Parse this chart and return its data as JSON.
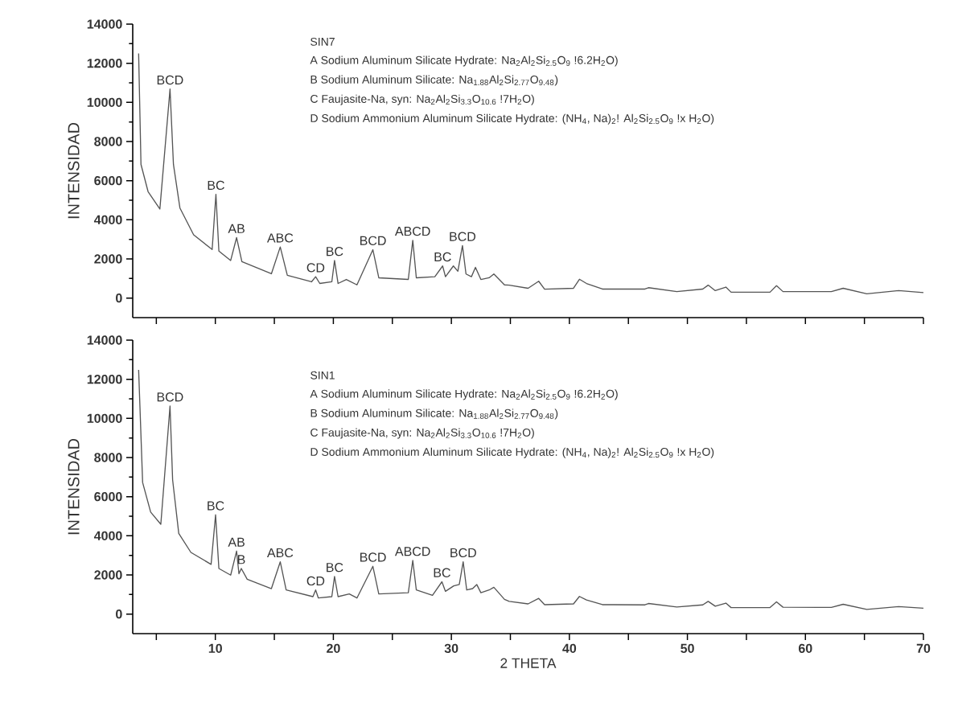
{
  "chart_data": [
    {
      "type": "line",
      "ylabel": "INTENSIDAD",
      "xlim": [
        3,
        70
      ],
      "ylim": [
        -1000,
        14000
      ],
      "xticks": [
        {
          "value": 5,
          "label": null
        },
        10,
        {
          "value": 15,
          "label": null
        },
        20,
        {
          "value": 25,
          "label": null
        },
        30,
        {
          "value": 35,
          "label": null
        },
        40,
        {
          "value": 45,
          "label": null
        },
        50,
        {
          "value": 55,
          "label": null
        },
        60,
        {
          "value": 65,
          "label": null
        },
        70
      ],
      "yticks": [
        0,
        2000,
        4000,
        6000,
        8000,
        10000,
        12000,
        14000
      ],
      "tick_labels": "y",
      "marker": "none",
      "line_style": "solid",
      "series": [
        {
          "color": "#555555",
          "x": [
            3.5,
            3.7,
            4.3,
            5.3,
            6.16,
            6.45,
            7.0,
            8.16,
            9.73,
            10.05,
            10.3,
            11.3,
            11.8,
            12.25,
            14.75,
            15.5,
            16.1,
            18.15,
            18.5,
            18.85,
            19.87,
            20.1,
            20.4,
            21.1,
            22.0,
            23.35,
            23.85,
            26.35,
            26.73,
            27.03,
            28.6,
            29.26,
            29.5,
            30.17,
            30.55,
            30.94,
            31.24,
            31.7,
            32.04,
            32.5,
            33.2,
            33.6,
            34.5,
            34.9,
            36.5,
            37.4,
            37.9,
            40.35,
            40.85,
            41.45,
            42.8,
            46.4,
            46.7,
            49.1,
            51.3,
            51.76,
            52.36,
            53.26,
            53.7,
            57.0,
            57.55,
            58.1,
            62.2,
            63.2,
            65.2,
            67.9,
            70
          ],
          "values": [
            12500,
            6830,
            5440,
            4550,
            10680,
            6830,
            4600,
            3230,
            2480,
            5300,
            2400,
            1920,
            3090,
            1860,
            1240,
            2610,
            1160,
            830,
            1090,
            745,
            830,
            1920,
            745,
            950,
            675,
            2470,
            1035,
            950,
            2950,
            1035,
            1090,
            1640,
            1090,
            1640,
            1370,
            2680,
            1230,
            1090,
            1570,
            950,
            1035,
            1230,
            675,
            660,
            500,
            860,
            455,
            500,
            960,
            745,
            460,
            460,
            530,
            330,
            460,
            660,
            380,
            560,
            300,
            300,
            630,
            330,
            330,
            500,
            215,
            380,
            280
          ]
        }
      ],
      "annotations": [
        "SIN7",
        "A Sodium Aluminum Silicate Hydrate: Na$_{2}$Al$_{2}$Si$_{2.5}$O$_{9}$ !6.2H$_{2}$O)",
        "B Sodium Aluminum Silicate: Na$_{1.88}$Al$_{2}$Si$_{2.77}$O$_{9.48}$)",
        "C Faujasite-Na, syn: Na$_{2}$Al$_{2}$Si$_{3.3}$O$_{10.6}$ !7H$_{2}$O)",
        "D Sodium Ammonium Aluminum Silicate Hydrate: (NH$_{4}$, Na)$_{2}$! Al$_{2}$Si$_{2.5}$O$_{9}$ !x H$_{2}$O)",
        {
          "text": "BCD",
          "x": 6.16,
          "y": 10680
        },
        {
          "text": "BC",
          "x": 10.05,
          "y": 5300
        },
        {
          "text": "AB",
          "x": 11.8,
          "y": 3090
        },
        {
          "text": "ABC",
          "x": 15.5,
          "y": 2610
        },
        {
          "text": "CD",
          "x": 18.5,
          "y": 1090
        },
        {
          "text": "BC",
          "x": 20.1,
          "y": 1920
        },
        {
          "text": "BCD",
          "x": 23.35,
          "y": 2470
        },
        {
          "text": "ABCD",
          "x": 26.73,
          "y": 2950
        },
        {
          "text": "BC",
          "x": 29.26,
          "y": 1640
        },
        {
          "text": "BCD",
          "x": 30.94,
          "y": 2680
        }
      ]
    },
    {
      "type": "line",
      "xlabel": "2 THETA",
      "ylabel": "INTENSIDAD",
      "xlim": [
        3,
        70
      ],
      "ylim": [
        -1000,
        14000
      ],
      "xticks": [
        {
          "value": 5,
          "label": null
        },
        10,
        {
          "value": 15,
          "label": null
        },
        20,
        {
          "value": 25,
          "label": null
        },
        30,
        {
          "value": 35,
          "label": null
        },
        40,
        {
          "value": 45,
          "label": null
        },
        50,
        {
          "value": 55,
          "label": null
        },
        60,
        {
          "value": 65,
          "label": null
        },
        70
      ],
      "yticks": [
        0,
        2000,
        4000,
        6000,
        8000,
        10000,
        12000,
        14000
      ],
      "marker": "none",
      "line_style": "solid",
      "series": [
        {
          "color": "#555555",
          "x": [
            3.5,
            3.84,
            4.52,
            5.38,
            6.16,
            6.38,
            6.9,
            7.93,
            9.64,
            10.02,
            10.3,
            11.3,
            11.8,
            12.0,
            12.2,
            12.7,
            14.75,
            15.5,
            16.0,
            18.27,
            18.5,
            18.73,
            19.87,
            20.1,
            20.4,
            21.35,
            22.0,
            23.35,
            23.85,
            26.35,
            26.73,
            27.03,
            28.4,
            29.2,
            29.5,
            30.2,
            30.67,
            31.0,
            31.3,
            31.8,
            32.15,
            32.5,
            33.2,
            33.6,
            34.5,
            34.9,
            36.5,
            37.4,
            37.9,
            40.35,
            40.85,
            41.45,
            42.8,
            46.4,
            46.7,
            49.1,
            51.3,
            51.76,
            52.36,
            53.26,
            53.7,
            57.0,
            57.55,
            58.1,
            62.2,
            63.2,
            65.2,
            67.9,
            70
          ],
          "values": [
            12480,
            6720,
            5210,
            4590,
            10630,
            6860,
            4120,
            3150,
            2540,
            5070,
            2330,
            1990,
            3220,
            2060,
            2330,
            1780,
            1300,
            2670,
            1230,
            890,
            1230,
            820,
            890,
            1920,
            890,
            1030,
            820,
            2440,
            1030,
            1090,
            2740,
            1230,
            960,
            1650,
            1160,
            1440,
            1510,
            2670,
            1230,
            1300,
            1510,
            1090,
            1230,
            1370,
            750,
            650,
            520,
            800,
            480,
            520,
            900,
            720,
            480,
            470,
            540,
            360,
            470,
            650,
            400,
            560,
            330,
            330,
            620,
            350,
            340,
            500,
            240,
            380,
            300
          ]
        }
      ],
      "annotations": [
        "SIN1",
        "A Sodium Aluminum Silicate Hydrate: Na$_{2}$Al$_{2}$Si$_{2.5}$O$_{9}$ !6.2H$_{2}$O)",
        "B Sodium Aluminum Silicate: Na$_{1.88}$Al$_{2}$Si$_{2.77}$O$_{9.48}$)",
        "C Faujasite-Na, syn: Na$_{2}$Al$_{2}$Si$_{3.3}$O$_{10.6}$ !7H$_{2}$O)",
        "D Sodium Ammonium Aluminum Silicate Hydrate: (NH$_{4}$, Na)$_{2}$! Al$_{2}$Si$_{2.5}$O$_{9}$ !x H$_{2}$O)",
        {
          "text": "BCD",
          "x": 6.16,
          "y": 10630
        },
        {
          "text": "BC",
          "x": 10.02,
          "y": 5070
        },
        {
          "text": "AB",
          "x": 11.8,
          "y": 3220
        },
        {
          "text": "B",
          "x": 12.2,
          "y": 2330
        },
        {
          "text": "ABC",
          "x": 15.5,
          "y": 2670
        },
        {
          "text": "CD",
          "x": 18.5,
          "y": 1230
        },
        {
          "text": "BC",
          "x": 20.1,
          "y": 1920
        },
        {
          "text": "BCD",
          "x": 23.35,
          "y": 2440
        },
        {
          "text": "ABCD",
          "x": 26.73,
          "y": 2740
        },
        {
          "text": "BC",
          "x": 29.2,
          "y": 1650
        },
        {
          "text": "BCD",
          "x": 31.0,
          "y": 2670
        }
      ]
    }
  ]
}
